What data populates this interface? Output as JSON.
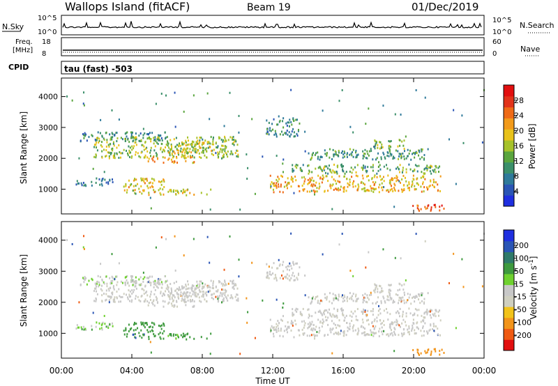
{
  "header": {
    "station": "Wallops Island (fitACF)",
    "beam": "Beam 19",
    "date": "01/Dec/2019"
  },
  "noise_panel": {
    "left_label": "N.Sky",
    "right_label": "N.Search",
    "left_ticks": [
      "10^5",
      "10^0"
    ],
    "right_ticks": [
      "10^5",
      "10^0"
    ]
  },
  "freq_panel": {
    "left_label_1": "Freq.",
    "left_label_2": "[MHz]",
    "right_label": "Nave",
    "left_ticks": [
      "18",
      "8"
    ],
    "right_ticks": [
      "60",
      "0"
    ]
  },
  "cpid_panel": {
    "label": "CPID",
    "text": "tau (fast) -503"
  },
  "colors": {
    "power_scale": [
      "#1f2fe0",
      "#2a55b5",
      "#2f7a9a",
      "#3b8f6a",
      "#5aa53e",
      "#a6c22a",
      "#e8c21a",
      "#f29a1a",
      "#ef6a16",
      "#e2331a",
      "#e20f0f"
    ],
    "velocity_scale": [
      "#1f2fe0",
      "#2a55b5",
      "#2f7a6a",
      "#3e9a3e",
      "#6fd12f",
      "#c8c8c8",
      "#cfcfbf",
      "#f2c31a",
      "#f2941a",
      "#ef5a12",
      "#e20f0f"
    ]
  },
  "chart_data": [
    {
      "type": "heatmap",
      "title": "",
      "xlabel": "Time UT",
      "ylabel": "Slant Range [km]",
      "x_ticks": [
        "00:00",
        "04:00",
        "08:00",
        "12:00",
        "16:00",
        "20:00",
        "00:00"
      ],
      "xlim": [
        0,
        24
      ],
      "y_ticks": [
        1000,
        2000,
        3000,
        4000
      ],
      "ylim": [
        200,
        4600
      ],
      "colorbar": {
        "label": "Power [dB]",
        "ticks": [
          "4",
          "8",
          "12",
          "16",
          "20",
          "24",
          "28"
        ],
        "range": [
          0,
          32
        ]
      }
    },
    {
      "type": "heatmap",
      "title": "",
      "xlabel": "Time UT",
      "ylabel": "Slant Range [km]",
      "x_ticks": [
        "00:00",
        "04:00",
        "08:00",
        "12:00",
        "16:00",
        "20:00",
        "00:00"
      ],
      "xlim": [
        0,
        24
      ],
      "y_ticks": [
        1000,
        2000,
        3000,
        4000
      ],
      "ylim": [
        200,
        4600
      ],
      "colorbar": {
        "label": "Velocity [m s^-1]",
        "ticks": [
          "200",
          "100",
          "50",
          "15",
          "-15",
          "-50",
          "-100",
          "-200"
        ]
      }
    }
  ],
  "clusters": [
    {
      "t0": 1.0,
      "t1": 6.0,
      "r0": 2550,
      "r1": 2850,
      "pw": 9,
      "vel": 10
    },
    {
      "t0": 1.8,
      "t1": 10.0,
      "r0": 2000,
      "r1": 2700,
      "pw": 15,
      "vel": -10
    },
    {
      "t0": 4.8,
      "t1": 7.5,
      "r0": 1850,
      "r1": 2050,
      "pw": 21,
      "vel": -10
    },
    {
      "t0": 6.0,
      "t1": 9.5,
      "r0": 2150,
      "r1": 2550,
      "pw": 17,
      "vel": -10
    },
    {
      "t0": 0.8,
      "t1": 3.0,
      "r0": 1100,
      "r1": 1350,
      "pw": 7,
      "vel": 20
    },
    {
      "t0": 3.5,
      "t1": 5.8,
      "r0": 800,
      "r1": 1350,
      "pw": 19,
      "vel": 60
    },
    {
      "t0": 6.0,
      "t1": 8.5,
      "r0": 800,
      "r1": 1000,
      "pw": 18,
      "vel": 40
    },
    {
      "t0": 11.6,
      "t1": 13.5,
      "r0": 2700,
      "r1": 3300,
      "pw": 10,
      "vel": -12
    },
    {
      "t0": 11.8,
      "t1": 21.5,
      "r0": 900,
      "r1": 1450,
      "pw": 20,
      "vel": -10
    },
    {
      "t0": 13.0,
      "t1": 21.5,
      "r0": 1500,
      "r1": 1800,
      "pw": 13,
      "vel": -10
    },
    {
      "t0": 14.0,
      "t1": 21.0,
      "r0": 1950,
      "r1": 2300,
      "pw": 11,
      "vel": -10
    },
    {
      "t0": 17.5,
      "t1": 19.5,
      "r0": 2300,
      "r1": 2600,
      "pw": 14,
      "vel": -10
    },
    {
      "t0": 19.8,
      "t1": 21.8,
      "r0": 300,
      "r1": 500,
      "pw": 26,
      "vel": -60
    }
  ]
}
